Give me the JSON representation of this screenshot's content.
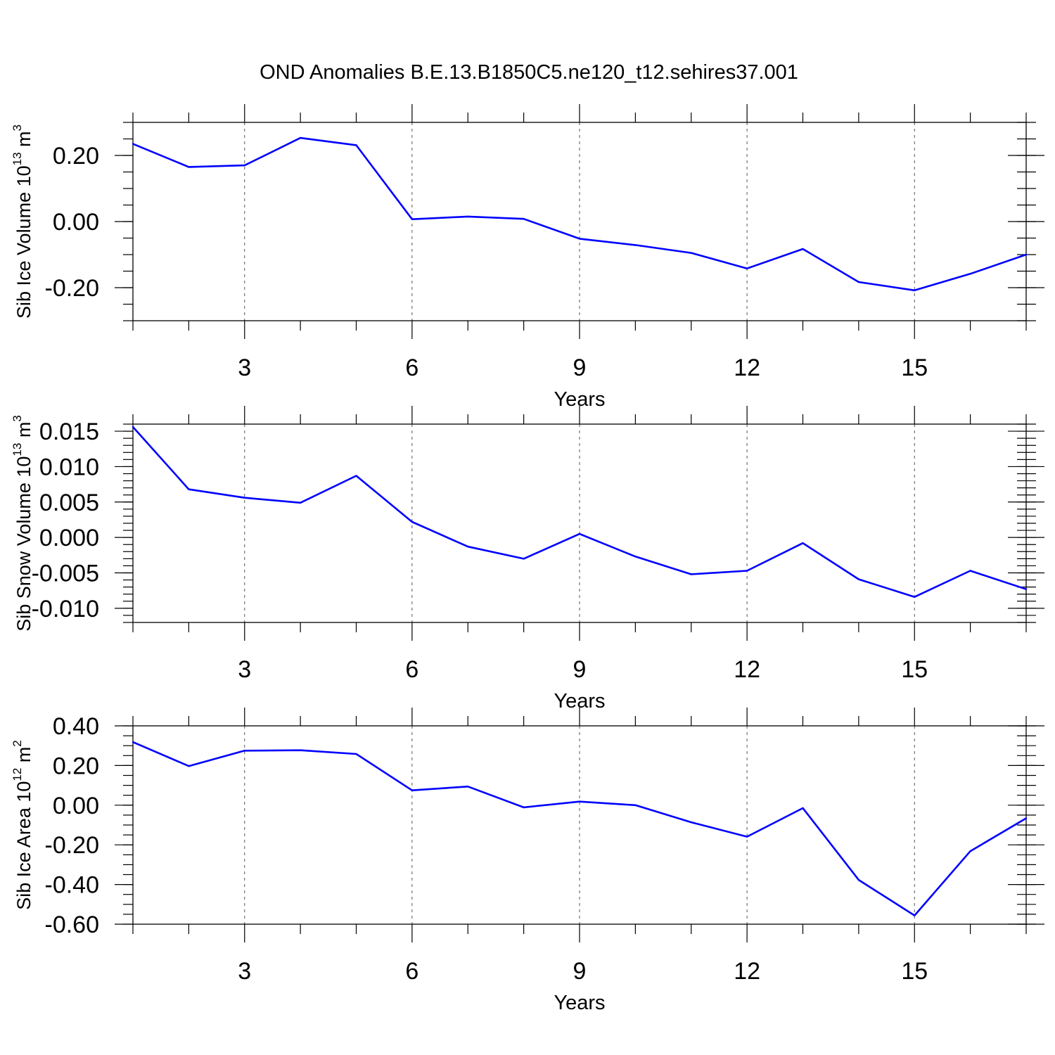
{
  "title": "OND Anomalies B.E.13.B1850C5.ne120_t12.sehires37.001",
  "series_color": "#0000ff",
  "chart_data": [
    {
      "type": "line",
      "ylabel_base": "Sib Ice Volume 10",
      "ylabel_exp": "13",
      "ylabel_unit": " m",
      "ylabel_unit_exp": "3",
      "xlabel": "Years",
      "xlim": [
        1,
        17
      ],
      "ylim": [
        -0.3,
        0.3
      ],
      "grid_x": true,
      "x_ticks": [
        3,
        6,
        9,
        12,
        15
      ],
      "y_ticks": [
        {
          "v": 0.2,
          "label": "0.20"
        },
        {
          "v": 0.0,
          "label": "0.00"
        },
        {
          "v": -0.2,
          "label": "-0.20"
        }
      ],
      "y_minor_step": 0.05,
      "x": [
        1,
        2,
        3,
        4,
        5,
        6,
        7,
        8,
        9,
        10,
        11,
        12,
        13,
        14,
        15,
        16,
        17
      ],
      "values": [
        0.235,
        0.165,
        0.17,
        0.253,
        0.231,
        0.007,
        0.015,
        0.008,
        -0.052,
        -0.071,
        -0.095,
        -0.142,
        -0.083,
        -0.183,
        -0.208,
        -0.158,
        -0.1
      ]
    },
    {
      "type": "line",
      "ylabel_base": "Sib Snow Volume 10",
      "ylabel_exp": "13",
      "ylabel_unit": " m",
      "ylabel_unit_exp": "3",
      "xlabel": "Years",
      "xlim": [
        1,
        17
      ],
      "ylim": [
        -0.012,
        0.016
      ],
      "grid_x": true,
      "x_ticks": [
        3,
        6,
        9,
        12,
        15
      ],
      "y_ticks": [
        {
          "v": 0.015,
          "label": "0.015"
        },
        {
          "v": 0.01,
          "label": "0.010"
        },
        {
          "v": 0.005,
          "label": "0.005"
        },
        {
          "v": 0.0,
          "label": "0.000"
        },
        {
          "v": -0.005,
          "label": "-0.005"
        },
        {
          "v": -0.01,
          "label": "-0.010"
        }
      ],
      "y_minor_step": 0.001,
      "x": [
        1,
        2,
        3,
        4,
        5,
        6,
        7,
        8,
        9,
        10,
        11,
        12,
        13,
        14,
        15,
        16,
        17
      ],
      "values": [
        0.0156,
        0.0068,
        0.0056,
        0.0049,
        0.0087,
        0.0022,
        -0.0013,
        -0.003,
        0.0005,
        -0.0027,
        -0.0052,
        -0.0047,
        -0.0008,
        -0.0059,
        -0.0084,
        -0.0047,
        -0.0073
      ]
    },
    {
      "type": "line",
      "ylabel_base": "Sib Ice Area 10",
      "ylabel_exp": "12",
      "ylabel_unit": " m",
      "ylabel_unit_exp": "2",
      "xlabel": "Years",
      "xlim": [
        1,
        17
      ],
      "ylim": [
        -0.6,
        0.4
      ],
      "grid_x": true,
      "x_ticks": [
        3,
        6,
        9,
        12,
        15
      ],
      "y_ticks": [
        {
          "v": 0.4,
          "label": "0.40"
        },
        {
          "v": 0.2,
          "label": "0.20"
        },
        {
          "v": 0.0,
          "label": "0.00"
        },
        {
          "v": -0.2,
          "label": "-0.20"
        },
        {
          "v": -0.4,
          "label": "-0.40"
        },
        {
          "v": -0.6,
          "label": "-0.60"
        }
      ],
      "y_minor_step": 0.05,
      "x": [
        1,
        2,
        3,
        4,
        5,
        6,
        7,
        8,
        9,
        10,
        11,
        12,
        13,
        14,
        15,
        16,
        17
      ],
      "values": [
        0.318,
        0.197,
        0.275,
        0.277,
        0.258,
        0.075,
        0.094,
        -0.011,
        0.018,
        0.0,
        -0.086,
        -0.159,
        -0.015,
        -0.377,
        -0.556,
        -0.232,
        -0.066
      ]
    }
  ]
}
